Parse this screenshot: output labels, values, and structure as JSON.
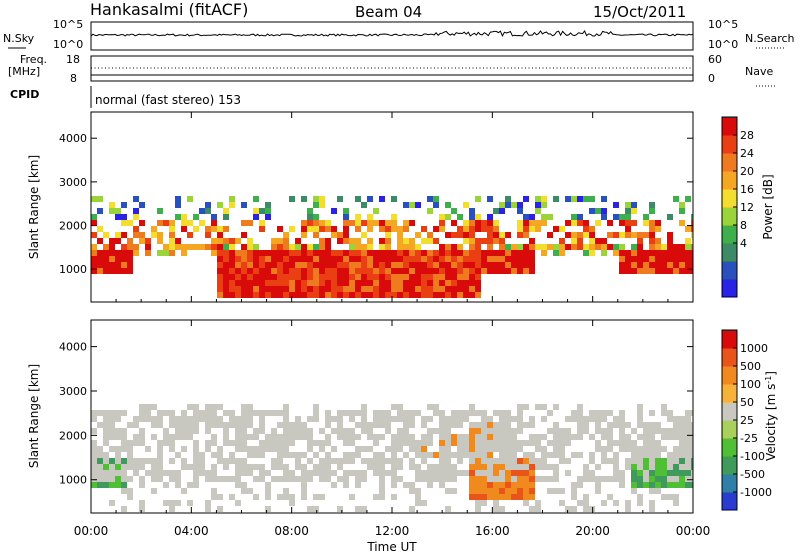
{
  "header": {
    "station": "Hankasalmi (fitACF)",
    "beam": "Beam 04",
    "date": "15/Oct/2011"
  },
  "top_panels": {
    "nsky_label": "N.Sky",
    "nsky_ticks": [
      "10^5",
      "10^0"
    ],
    "nsearch_label": "N.Search",
    "nsearch_ticks": [
      "10^5",
      "10^0"
    ],
    "freq_label": "Freq.",
    "freq_unit": "[MHz]",
    "freq_ticks": [
      "18",
      "8"
    ],
    "nave_label": "Nave",
    "nave_ticks": [
      "60",
      "0"
    ],
    "cpid_label": "CPID",
    "cpid_text": "normal (fast stereo) 153"
  },
  "chart_data": [
    {
      "type": "heatmap",
      "panel": "power",
      "ylabel": "Slant Range [km]",
      "xlabel": "",
      "yticks": [
        "4000",
        "3000",
        "2000",
        "1000"
      ],
      "yvals": [
        4000,
        3000,
        2000,
        1000
      ],
      "ylim": [
        250,
        4600
      ],
      "xlim": [
        0,
        24
      ],
      "colorbar": {
        "label": "Power [dB]",
        "ticks": [
          "28",
          "24",
          "20",
          "16",
          "12",
          "8",
          "4"
        ],
        "colors": [
          "#2a22e6",
          "#2a4fbf",
          "#3c8a66",
          "#3fae4c",
          "#9bd43a",
          "#f3dd2e",
          "#f5a623",
          "#f07a1e",
          "#ea3f12",
          "#d80a0a"
        ]
      }
    },
    {
      "type": "heatmap",
      "panel": "velocity",
      "ylabel": "Slant Range [km]",
      "xlabel": "Time UT",
      "yticks": [
        "4000",
        "3000",
        "2000",
        "1000"
      ],
      "yvals": [
        4000,
        3000,
        2000,
        1000
      ],
      "ylim": [
        250,
        4600
      ],
      "xlim": [
        0,
        24
      ],
      "xticks": [
        "00:00",
        "04:00",
        "08:00",
        "12:00",
        "16:00",
        "20:00",
        "00:00"
      ],
      "xvals": [
        0,
        4,
        8,
        12,
        16,
        20,
        24
      ],
      "colorbar": {
        "label": "Velocity [m s-1]",
        "ticks": [
          "1000",
          "500",
          "100",
          "50",
          "25",
          "-25",
          "-100",
          "-500",
          "-1000"
        ],
        "colors": [
          "#2a3ccf",
          "#2f7fa8",
          "#3f9a5c",
          "#4fbf36",
          "#a8d05a",
          "#c8c8c0",
          "#f7b23a",
          "#f18a1e",
          "#e8541a",
          "#d80a0a"
        ]
      }
    }
  ]
}
